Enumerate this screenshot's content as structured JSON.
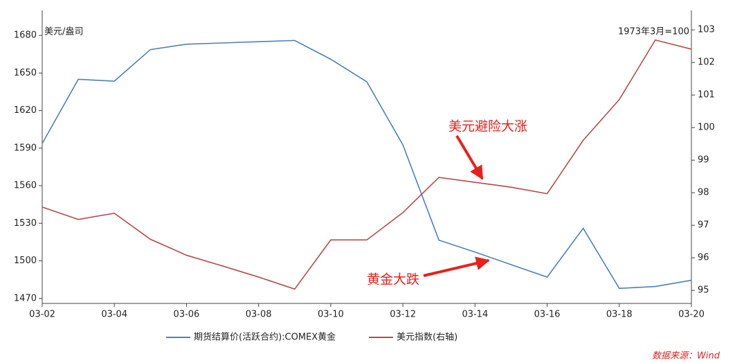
{
  "chart_data": {
    "type": "line",
    "x": [
      "03-02",
      null,
      "03-04",
      null,
      "03-06",
      null,
      "03-08",
      null,
      "03-10",
      null,
      "03-12",
      null,
      "03-14",
      null,
      "03-16",
      null,
      "03-18",
      null,
      "03-20"
    ],
    "y_unit": "美元/盎司",
    "y2_unit": "1973年3月=100",
    "series": [
      {
        "name": "期货结算价(活跃合约):COMEX黄金",
        "color": "#4f7fb8",
        "axis": "y",
        "values": [
          1593.7,
          1645,
          1643.5,
          1668.7,
          1673,
          1674,
          1675,
          1676,
          1661,
          1643,
          1592.6,
          1516.5,
          1507,
          1497,
          1487,
          1526,
          1478,
          1479.5,
          1484.5
        ]
      },
      {
        "name": "美元指数(右轴)",
        "color": "#b84a4a",
        "axis": "y2",
        "values": [
          97.56,
          97.18,
          97.37,
          96.57,
          96.08,
          95.75,
          95.41,
          95.04,
          96.55,
          96.55,
          97.39,
          98.47,
          98.32,
          98.17,
          97.97,
          99.61,
          100.86,
          102.69,
          102.41
        ]
      }
    ],
    "ylim": [
      1466,
      1700
    ],
    "yticks": [
      1470,
      1500,
      1530,
      1560,
      1590,
      1620,
      1650,
      1680
    ],
    "y2lim": [
      94.6,
      103.6
    ],
    "y2ticks": [
      95,
      96,
      97,
      98,
      99,
      100,
      101,
      102,
      103
    ],
    "annotations": [
      {
        "text": "美元避险大涨",
        "color": "#e8201c"
      },
      {
        "text": "黄金大跌",
        "color": "#e8201c"
      }
    ],
    "source": "数据来源：Wind",
    "source_color": "#e8201c"
  }
}
